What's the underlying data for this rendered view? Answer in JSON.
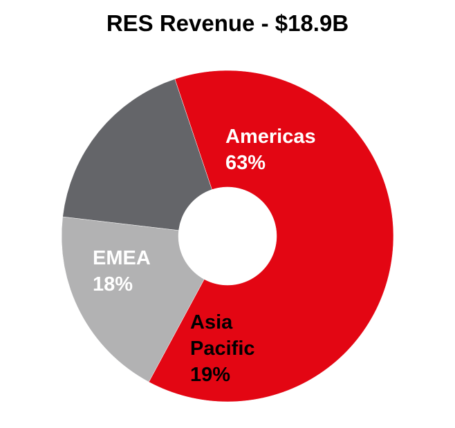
{
  "chart_data": {
    "type": "pie",
    "variant": "donut",
    "title": "RES Revenue - $18.9B",
    "slices": [
      {
        "label": "Americas",
        "value": 63,
        "value_label": "63%",
        "color": "#E30613",
        "label_color": "#ffffff"
      },
      {
        "label": "Asia Pacific",
        "value": 19,
        "value_label": "19%",
        "color": "#B2B2B3",
        "label_color": "#000000"
      },
      {
        "label": "EMEA",
        "value": 18,
        "value_label": "18%",
        "color": "#646569",
        "label_color": "#ffffff"
      }
    ],
    "legend": "none"
  }
}
